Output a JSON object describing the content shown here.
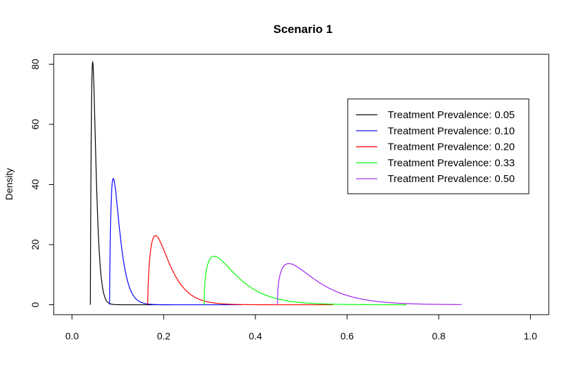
{
  "chart_data": {
    "type": "line",
    "title": "Scenario 1",
    "xlabel": "",
    "ylabel": "Density",
    "xlim": [
      -0.04,
      1.04
    ],
    "ylim": [
      -3.3,
      83.3
    ],
    "xticks": [
      0.0,
      0.2,
      0.4,
      0.6,
      0.8,
      1.0
    ],
    "xtick_labels": [
      "0.0",
      "0.2",
      "0.4",
      "0.6",
      "0.8",
      "1.0"
    ],
    "yticks": [
      0,
      20,
      40,
      60,
      80
    ],
    "ytick_labels": [
      "0",
      "20",
      "40",
      "60",
      "80"
    ],
    "legend_position": "top-right",
    "series": [
      {
        "name": "Treatment Prevalence: 0.05",
        "color": "#000000",
        "start": 0.04,
        "peak_x": 0.045,
        "peak_y": 80.7,
        "decay": 0.005,
        "end": 0.22
      },
      {
        "name": "Treatment Prevalence: 0.10",
        "color": "#0000ff",
        "start": 0.082,
        "peak_x": 0.09,
        "peak_y": 42.0,
        "decay": 0.011,
        "end": 0.37
      },
      {
        "name": "Treatment Prevalence: 0.20",
        "color": "#ff0000",
        "start": 0.165,
        "peak_x": 0.182,
        "peak_y": 23.0,
        "decay": 0.025,
        "end": 0.57
      },
      {
        "name": "Treatment Prevalence: 0.33",
        "color": "#00ff00",
        "start": 0.288,
        "peak_x": 0.31,
        "peak_y": 16.1,
        "decay": 0.045,
        "end": 0.73
      },
      {
        "name": "Treatment Prevalence: 0.50",
        "color": "#a020f0",
        "start": 0.448,
        "peak_x": 0.473,
        "peak_y": 13.7,
        "decay": 0.055,
        "end": 0.85
      }
    ]
  }
}
